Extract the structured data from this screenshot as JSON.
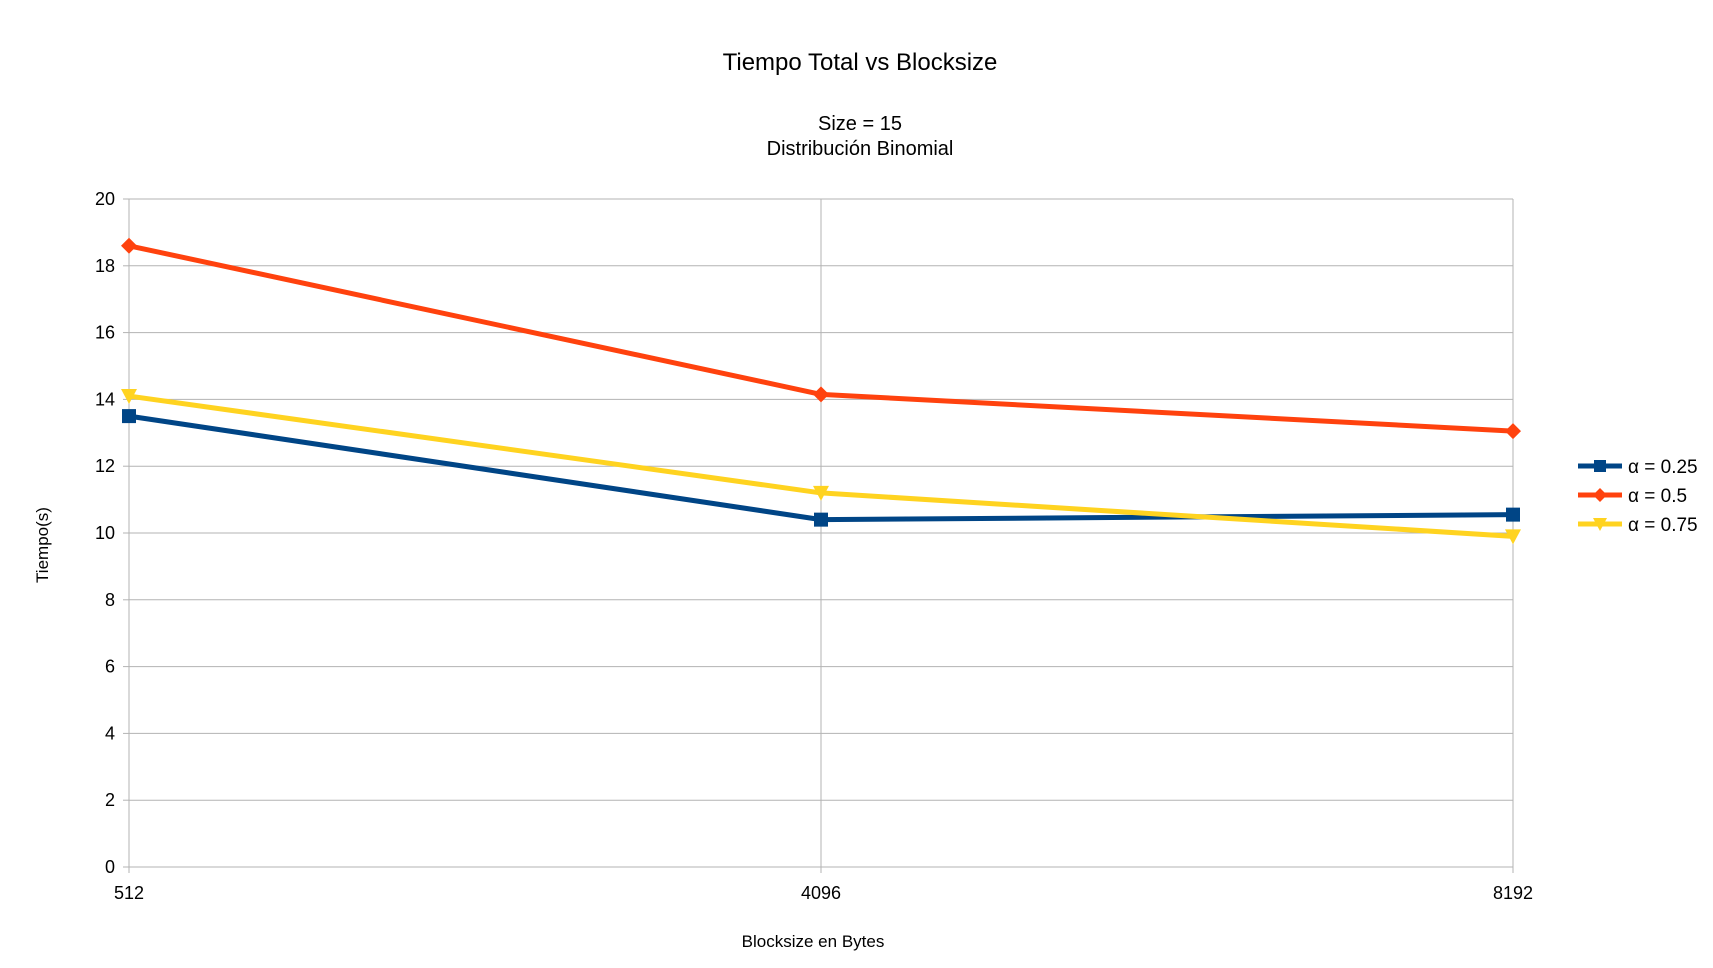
{
  "chart_data": {
    "type": "line",
    "title": "Tiempo Total vs Blocksize",
    "subtitle_lines": [
      "Size = 15",
      "Distribución Binomial"
    ],
    "xlabel": "Blocksize en Bytes",
    "ylabel": "Tiempo(s)",
    "categories": [
      "512",
      "4096",
      "8192"
    ],
    "ylim": [
      0,
      20
    ],
    "yticks": [
      0,
      2,
      4,
      6,
      8,
      10,
      12,
      14,
      16,
      18,
      20
    ],
    "grid": true,
    "legend_position": "right",
    "series": [
      {
        "name": "α = 0.25",
        "color": "#004586",
        "marker": "square",
        "values": [
          13.5,
          10.4,
          10.55
        ]
      },
      {
        "name": "α = 0.5",
        "color": "#ff420e",
        "marker": "diamond",
        "values": [
          18.6,
          14.15,
          13.05
        ]
      },
      {
        "name": "α = 0.75",
        "color": "#ffd320",
        "marker": "triangle-down",
        "values": [
          14.1,
          11.2,
          9.9
        ]
      }
    ]
  }
}
